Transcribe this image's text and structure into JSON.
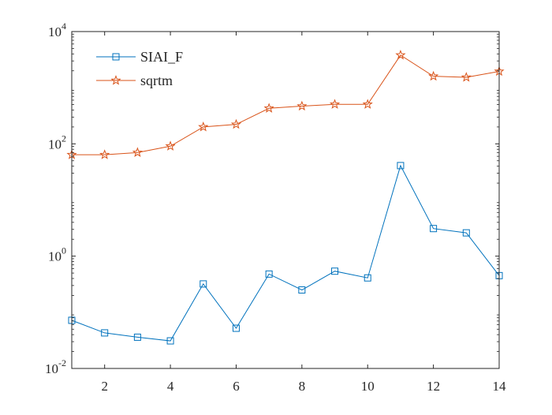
{
  "chart_data": {
    "type": "line",
    "title": "",
    "xlabel": "",
    "ylabel": "",
    "xlim": [
      1,
      14
    ],
    "ylim": [
      0.01,
      10000
    ],
    "yscale": "log",
    "grid": false,
    "legend_position": "top-left",
    "x_ticks": [
      2,
      4,
      6,
      8,
      10,
      12,
      14
    ],
    "x_tick_labels": [
      "2",
      "4",
      "6",
      "8",
      "10",
      "12",
      "14"
    ],
    "y_ticks": [
      0.01,
      1,
      100,
      10000
    ],
    "y_tick_labels": [
      {
        "base": "10",
        "exp": "-2"
      },
      {
        "base": "10",
        "exp": "0"
      },
      {
        "base": "10",
        "exp": "2"
      },
      {
        "base": "10",
        "exp": "4"
      }
    ],
    "x": [
      1,
      2,
      3,
      4,
      5,
      6,
      7,
      8,
      9,
      10,
      11,
      12,
      13,
      14
    ],
    "series": [
      {
        "name": "SIAI_F",
        "color": "#0072BD",
        "marker": "square",
        "values": [
          0.072,
          0.043,
          0.036,
          0.031,
          0.32,
          0.052,
          0.48,
          0.25,
          0.54,
          0.41,
          41,
          3.1,
          2.6,
          0.45
        ]
      },
      {
        "name": "sqrtm",
        "color": "#D95319",
        "marker": "pentagram",
        "values": [
          64,
          64,
          70,
          91,
          200,
          222,
          430,
          470,
          505,
          505,
          3800,
          1600,
          1530,
          1950
        ]
      }
    ]
  }
}
